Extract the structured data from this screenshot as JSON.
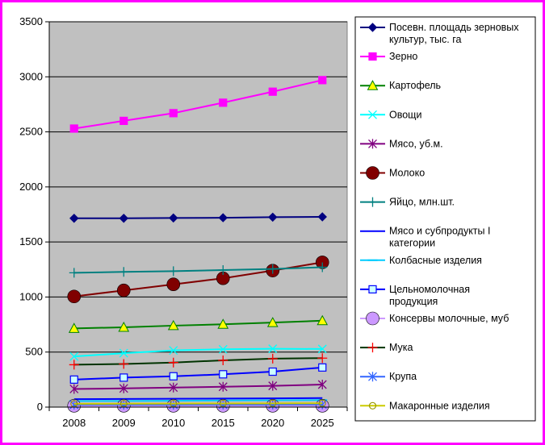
{
  "chart_data": {
    "type": "line",
    "title": "",
    "xlabel": "",
    "ylabel": "",
    "categories": [
      "2008",
      "2009",
      "2010",
      "2015",
      "2020",
      "2025"
    ],
    "ylim": [
      0,
      3500
    ],
    "yticks": [
      0,
      500,
      1000,
      1500,
      2000,
      2500,
      3000,
      3500
    ],
    "ytick_labels": [
      "0",
      "500",
      "1000",
      "1500",
      "2000",
      "2500",
      "3000",
      "3500"
    ],
    "grid": "horizontal",
    "plot_background": "#c0c0c0",
    "legend_position": "right",
    "series": [
      {
        "name": "Посевн. площадь зерновых культур, тыс. га",
        "legend_lines": [
          "Посевн. площадь зерновых",
          "культур, тыс. га"
        ],
        "color": "#000080",
        "marker": "diamond",
        "values": [
          1715,
          1715,
          1718,
          1720,
          1725,
          1728
        ]
      },
      {
        "name": "Зерно",
        "legend_lines": [
          "Зерно"
        ],
        "color": "#ff00ff",
        "marker": "square",
        "values": [
          2530,
          2600,
          2670,
          2765,
          2865,
          2970
        ]
      },
      {
        "name": "Картофель",
        "legend_lines": [
          "Картофель"
        ],
        "color": "#008000",
        "marker_fill": "#ffff00",
        "marker": "triangle",
        "values": [
          715,
          725,
          740,
          752,
          768,
          785
        ]
      },
      {
        "name": "Овощи",
        "legend_lines": [
          "Овощи"
        ],
        "color": "#00ffff",
        "marker": "x",
        "values": [
          460,
          490,
          515,
          525,
          530,
          528
        ]
      },
      {
        "name": "Мясо, уб.м.",
        "legend_lines": [
          "Мясо, уб.м."
        ],
        "color": "#800080",
        "marker": "star",
        "values": [
          165,
          170,
          178,
          185,
          193,
          205
        ]
      },
      {
        "name": "Молоко",
        "legend_lines": [
          "Молоко"
        ],
        "color": "#800000",
        "marker_fill": "#800000",
        "marker": "circle",
        "values": [
          1005,
          1060,
          1115,
          1170,
          1240,
          1315
        ]
      },
      {
        "name": "Яйцо, млн.шт.",
        "legend_lines": [
          "Яйцо, млн.шт."
        ],
        "color": "#008080",
        "marker": "plus",
        "values": [
          1220,
          1228,
          1235,
          1245,
          1255,
          1270
        ]
      },
      {
        "name": "Мясо и субпродукты I категории",
        "legend_lines": [
          "Мясо и субпродукты I",
          "категории"
        ],
        "color": "#0000ff",
        "marker": "none",
        "values": [
          72,
          74,
          76,
          78,
          80,
          82
        ]
      },
      {
        "name": "Колбасные изделия",
        "legend_lines": [
          "Колбасные изделия"
        ],
        "color": "#00ccff",
        "marker": "dash",
        "values": [
          55,
          56,
          58,
          60,
          62,
          64
        ]
      },
      {
        "name": "Цельномолочная продукция",
        "legend_lines": [
          "Цельномолочная",
          "продукция"
        ],
        "color": "#0000ff",
        "marker_fill": "#ccffff",
        "marker": "square",
        "values": [
          250,
          268,
          280,
          298,
          322,
          360
        ]
      },
      {
        "name": "Консервы молочные, муб",
        "legend_lines": [
          "Консервы молочные, муб"
        ],
        "color": "#cc99ff",
        "marker_fill": "#cc99ff",
        "marker": "circle",
        "values": [
          12,
          12,
          12,
          12,
          12,
          12
        ]
      },
      {
        "name": "Мука",
        "legend_lines": [
          "Мука"
        ],
        "color": "#003300",
        "marker_color": "#ff0000",
        "marker": "plus",
        "values": [
          385,
          392,
          405,
          425,
          440,
          445
        ]
      },
      {
        "name": "Крупа",
        "legend_lines": [
          "Крупа"
        ],
        "color": "#3366ff",
        "marker": "star",
        "values": [
          22,
          22,
          22,
          23,
          23,
          24
        ]
      },
      {
        "name": "Макаронные изделия",
        "legend_lines": [
          "Макаронные изделия"
        ],
        "color": "#cccc00",
        "marker_color": "#999900",
        "marker": "circle-open",
        "values": [
          30,
          31,
          32,
          33,
          34,
          35
        ]
      }
    ]
  }
}
